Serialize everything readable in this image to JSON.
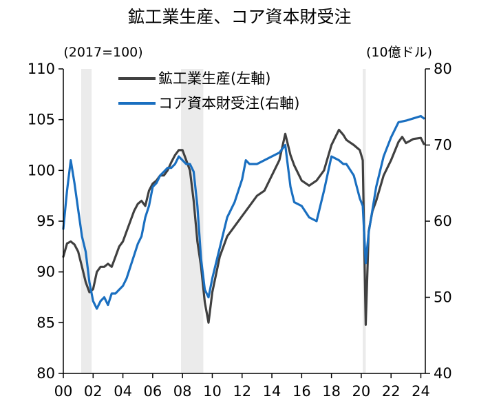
{
  "chart_data": {
    "type": "line",
    "title": "鉱工業生産、コア資本財受注",
    "left_unit": "(2017=100)",
    "right_unit": "(10億ドル)",
    "x_axis": {
      "range": [
        2000,
        2024.3
      ],
      "tick_values": [
        2000,
        2002,
        2004,
        2006,
        2008,
        2010,
        2012,
        2014,
        2016,
        2018,
        2020,
        2022,
        2024
      ],
      "tick_labels": [
        "00",
        "02",
        "04",
        "06",
        "08",
        "10",
        "12",
        "14",
        "16",
        "18",
        "20",
        "22",
        "24"
      ]
    },
    "left_axis": {
      "range": [
        80,
        110
      ],
      "ticks": [
        80,
        85,
        90,
        95,
        100,
        105,
        110
      ],
      "tick_labels": [
        "80",
        "85",
        "90",
        "95",
        "100",
        "105",
        "110"
      ]
    },
    "right_axis": {
      "range": [
        40,
        80
      ],
      "ticks": [
        40,
        50,
        60,
        70,
        80
      ],
      "tick_labels": [
        "40",
        "50",
        "60",
        "70",
        "80"
      ]
    },
    "recession_shading": [
      [
        2001.2,
        2001.9
      ],
      [
        2007.9,
        2009.4
      ],
      [
        2020.1,
        2020.3
      ]
    ],
    "series": [
      {
        "name": "鉱工業生産(左軸)",
        "axis": "left",
        "color": "#404040",
        "x": [
          2000.0,
          2000.25,
          2000.5,
          2000.75,
          2001.0,
          2001.25,
          2001.5,
          2001.75,
          2002.0,
          2002.25,
          2002.5,
          2002.75,
          2003.0,
          2003.25,
          2003.5,
          2003.75,
          2004.0,
          2004.25,
          2004.5,
          2004.75,
          2005.0,
          2005.25,
          2005.5,
          2005.75,
          2006.0,
          2006.25,
          2006.5,
          2006.75,
          2007.0,
          2007.25,
          2007.5,
          2007.75,
          2008.0,
          2008.25,
          2008.5,
          2008.75,
          2009.0,
          2009.25,
          2009.5,
          2009.75,
          2010.0,
          2010.5,
          2011.0,
          2011.5,
          2012.0,
          2012.5,
          2013.0,
          2013.5,
          2014.0,
          2014.5,
          2014.9,
          2015.25,
          2015.5,
          2016.0,
          2016.5,
          2017.0,
          2017.5,
          2018.0,
          2018.5,
          2018.8,
          2019.0,
          2019.5,
          2019.9,
          2020.1,
          2020.3,
          2020.5,
          2020.75,
          2021.0,
          2021.5,
          2022.0,
          2022.5,
          2022.75,
          2023.0,
          2023.5,
          2024.0,
          2024.2
        ],
        "values": [
          91.5,
          92.8,
          93.0,
          92.7,
          92.0,
          90.5,
          89.0,
          88.0,
          88.3,
          90.0,
          90.5,
          90.5,
          90.8,
          90.5,
          91.5,
          92.5,
          93.0,
          94.0,
          95.0,
          96.0,
          96.7,
          97.0,
          96.5,
          98.0,
          98.7,
          99.0,
          99.5,
          99.5,
          100.0,
          100.8,
          101.5,
          102.0,
          102.0,
          101.0,
          100.0,
          97.0,
          93.0,
          90.5,
          87.0,
          85.0,
          88.0,
          91.5,
          93.5,
          94.5,
          95.5,
          96.5,
          97.5,
          98.0,
          99.5,
          101.0,
          103.6,
          101.5,
          100.5,
          99.0,
          98.5,
          99.0,
          100.0,
          102.5,
          104.0,
          103.5,
          103.0,
          102.5,
          102.0,
          101.0,
          84.8,
          94.0,
          96.0,
          97.0,
          99.5,
          101.0,
          102.8,
          103.3,
          102.7,
          103.1,
          103.2,
          102.6
        ]
      },
      {
        "name": "コア資本財受注(右軸)",
        "axis": "right",
        "color": "#1a6fc0",
        "x": [
          2000.0,
          2000.25,
          2000.5,
          2000.75,
          2001.0,
          2001.25,
          2001.5,
          2001.75,
          2002.0,
          2002.25,
          2002.5,
          2002.75,
          2003.0,
          2003.25,
          2003.5,
          2003.75,
          2004.0,
          2004.25,
          2004.5,
          2004.75,
          2005.0,
          2005.25,
          2005.5,
          2005.75,
          2006.0,
          2006.25,
          2006.5,
          2006.75,
          2007.0,
          2007.25,
          2007.5,
          2007.75,
          2008.0,
          2008.25,
          2008.5,
          2008.75,
          2009.0,
          2009.25,
          2009.5,
          2009.75,
          2010.0,
          2010.5,
          2011.0,
          2011.5,
          2012.0,
          2012.25,
          2012.5,
          2013.0,
          2013.5,
          2014.0,
          2014.5,
          2014.9,
          2015.25,
          2015.5,
          2016.0,
          2016.5,
          2017.0,
          2017.5,
          2018.0,
          2018.5,
          2018.8,
          2019.0,
          2019.5,
          2019.9,
          2020.1,
          2020.3,
          2020.5,
          2020.75,
          2021.0,
          2021.5,
          2022.0,
          2022.5,
          2023.0,
          2023.5,
          2024.0,
          2024.2
        ],
        "values": [
          59.0,
          64.0,
          68.0,
          65.0,
          61.5,
          58.0,
          56.0,
          52.0,
          49.5,
          48.5,
          49.5,
          50.0,
          49.0,
          50.5,
          50.5,
          51.0,
          51.5,
          52.5,
          54.0,
          55.5,
          57.0,
          58.0,
          60.5,
          62.0,
          64.5,
          65.0,
          66.0,
          66.5,
          67.0,
          67.0,
          67.5,
          68.5,
          68.0,
          67.5,
          67.5,
          66.5,
          62.0,
          55.0,
          51.0,
          50.0,
          52.5,
          56.5,
          60.5,
          62.5,
          65.5,
          68.0,
          67.5,
          67.5,
          68.0,
          68.5,
          69.0,
          70.0,
          64.5,
          62.5,
          62.0,
          60.5,
          60.0,
          64.0,
          68.5,
          68.0,
          67.5,
          67.5,
          66.0,
          63.0,
          62.0,
          54.5,
          58.5,
          61.5,
          64.5,
          68.5,
          71.0,
          73.0,
          73.2,
          73.5,
          73.8,
          73.5
        ]
      }
    ]
  }
}
